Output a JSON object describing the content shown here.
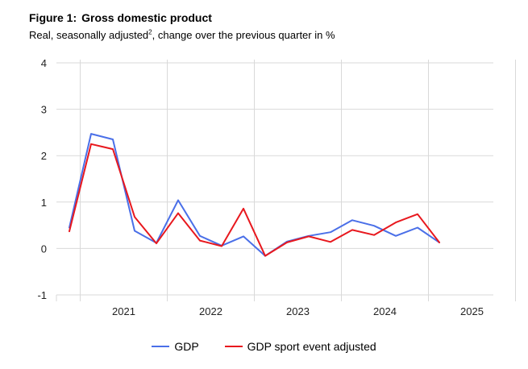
{
  "figure": {
    "label": "Figure 1:",
    "title": "Gross domestic product",
    "subtitle_pre": "Real, seasonally adjusted",
    "subtitle_sup": "2",
    "subtitle_post": ", change over the previous quarter in %"
  },
  "colors": {
    "gdp": "#4a6fe8",
    "sport": "#e8181e",
    "grid": "#d9d9d9"
  },
  "chart_data": {
    "type": "line",
    "title": "Gross domestic product",
    "subtitle": "Real, seasonally adjusted, change over the previous quarter in %",
    "xlabel": "",
    "ylabel": "",
    "ylim": [
      -1,
      4
    ],
    "yticks": [
      -1,
      0,
      1,
      2,
      3,
      4
    ],
    "year_labels": [
      "2021",
      "2022",
      "2023",
      "2024",
      "2025"
    ],
    "x": [
      "2020 Q4",
      "2021 Q1",
      "2021 Q2",
      "2021 Q3",
      "2021 Q4",
      "2022 Q1",
      "2022 Q2",
      "2022 Q3",
      "2022 Q4",
      "2023 Q1",
      "2023 Q2",
      "2023 Q3",
      "2023 Q4",
      "2024 Q1",
      "2024 Q2",
      "2024 Q3",
      "2024 Q4",
      "2025 Q1"
    ],
    "series": [
      {
        "name": "GDP",
        "color": "#4a6fe8",
        "values": [
          0.45,
          2.47,
          2.35,
          0.38,
          0.12,
          1.04,
          0.27,
          0.06,
          0.26,
          -0.16,
          0.15,
          0.27,
          0.35,
          0.61,
          0.49,
          0.27,
          0.45,
          0.13
        ]
      },
      {
        "name": "GDP sport event adjusted",
        "color": "#e8181e",
        "values": [
          0.37,
          2.25,
          2.14,
          0.68,
          0.11,
          0.76,
          0.17,
          0.05,
          0.86,
          -0.16,
          0.13,
          0.26,
          0.14,
          0.4,
          0.29,
          0.56,
          0.74,
          0.13
        ]
      }
    ],
    "grid": true,
    "legend_position": "bottom"
  }
}
